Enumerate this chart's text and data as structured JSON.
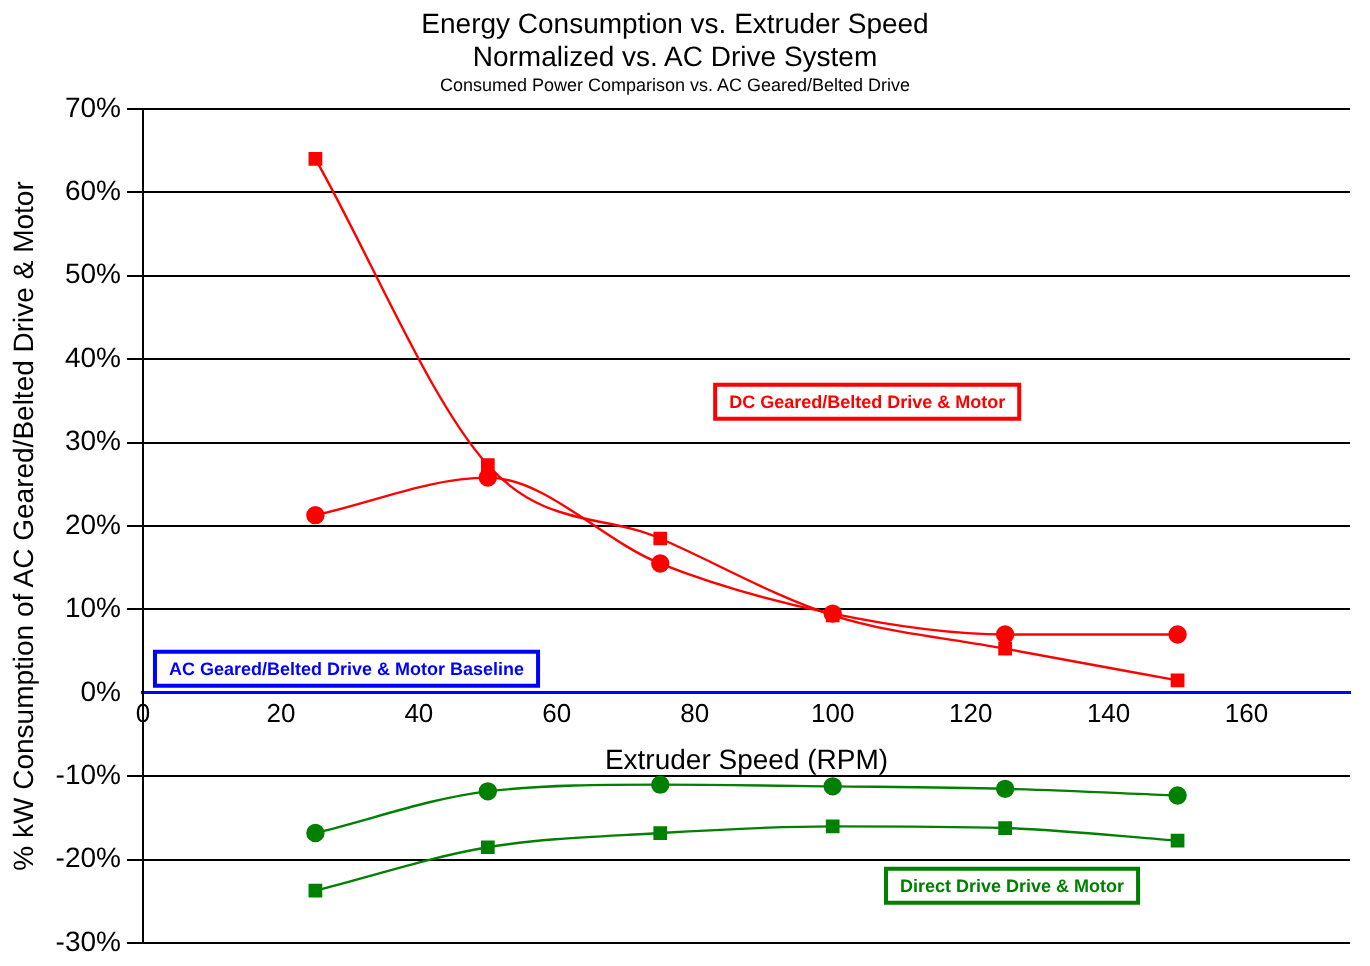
{
  "chart_data": {
    "type": "line",
    "title": "Energy Consumption vs. Extruder Speed",
    "subtitle": "Normalized vs. AC Drive System",
    "annotations": [
      "Consumed Power Comparison vs. AC Geared/Belted Drive",
      "DC Geared/Belted Drive & Motor",
      "Direct Drive Drive & Motor",
      "AC Geared/Belted Drive & Motor Baseline"
    ],
    "xlabel": "Extruder Speed (RPM)",
    "ylabel": "% kW Consumption of AC Geared/Belted Drive & Motor",
    "x": [
      25,
      50,
      75,
      100,
      125,
      150
    ],
    "series": [
      {
        "color": "#ff0000",
        "marker": "square",
        "values": [
          64,
          27.3,
          18.5,
          9.3,
          5.3,
          1.5
        ]
      },
      {
        "color": "#ff0000",
        "marker": "circle",
        "values": [
          21.3,
          25.8,
          15.5,
          9.5,
          7,
          7
        ]
      },
      {
        "color": "#008000",
        "marker": "circle",
        "values": [
          -16.8,
          -11.8,
          -11,
          -11.2,
          -11.5,
          -12.3
        ]
      },
      {
        "color": "#008000",
        "marker": "square",
        "values": [
          -23.7,
          -18.5,
          -16.8,
          -16,
          -16.2,
          -17.7
        ]
      }
    ],
    "xlim": [
      0,
      175
    ],
    "xticks": [
      0,
      20,
      40,
      60,
      80,
      100,
      120,
      140,
      160
    ],
    "ylim": [
      -30,
      70
    ],
    "yticks": [
      {
        "value": -30,
        "label": "-30%"
      },
      {
        "value": -20,
        "label": "-20%"
      },
      {
        "value": -10,
        "label": "-10%"
      },
      {
        "value": 0,
        "label": "0%"
      },
      {
        "value": 10,
        "label": "10%"
      },
      {
        "value": 20,
        "label": "20%"
      },
      {
        "value": 30,
        "label": "30%"
      },
      {
        "value": 40,
        "label": "40%"
      },
      {
        "value": 50,
        "label": "50%"
      },
      {
        "value": 60,
        "label": "60%"
      },
      {
        "value": 70,
        "label": "70%"
      }
    ],
    "grid": "y",
    "legend": false
  }
}
